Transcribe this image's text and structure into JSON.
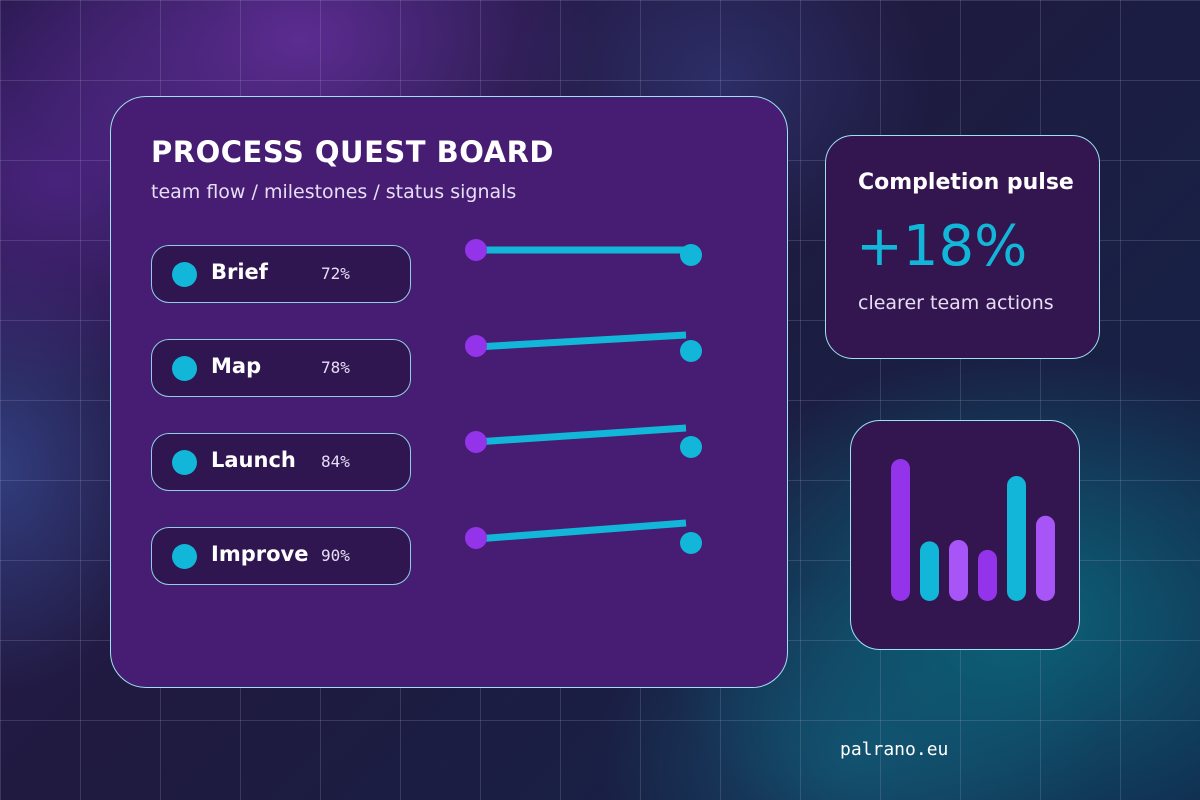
{
  "board": {
    "title": "PROCESS QUEST BOARD",
    "subtitle": "team flow / milestones / status signals",
    "steps": [
      {
        "name": "Brief",
        "percent": "72%",
        "value": 72
      },
      {
        "name": "Map",
        "percent": "78%",
        "value": 78
      },
      {
        "name": "Launch",
        "percent": "84%",
        "value": 84
      },
      {
        "name": "Improve",
        "percent": "90%",
        "value": 90
      }
    ]
  },
  "pulse": {
    "title": "Completion pulse",
    "value": "+18%",
    "caption": "clearer team actions"
  },
  "chart_data": {
    "type": "bar",
    "values": [
      1.0,
      0.42,
      0.43,
      0.36,
      0.88,
      0.6
    ],
    "colors": [
      "#9333ea",
      "#12b6d8",
      "#a855f7",
      "#9333ea",
      "#12b6d8",
      "#a855f7"
    ]
  },
  "colors": {
    "accent_cyan": "#12b6d8",
    "accent_purple": "#9333ea",
    "card_border": "#9be3f2"
  },
  "footer": {
    "domain": "palrano.eu"
  }
}
